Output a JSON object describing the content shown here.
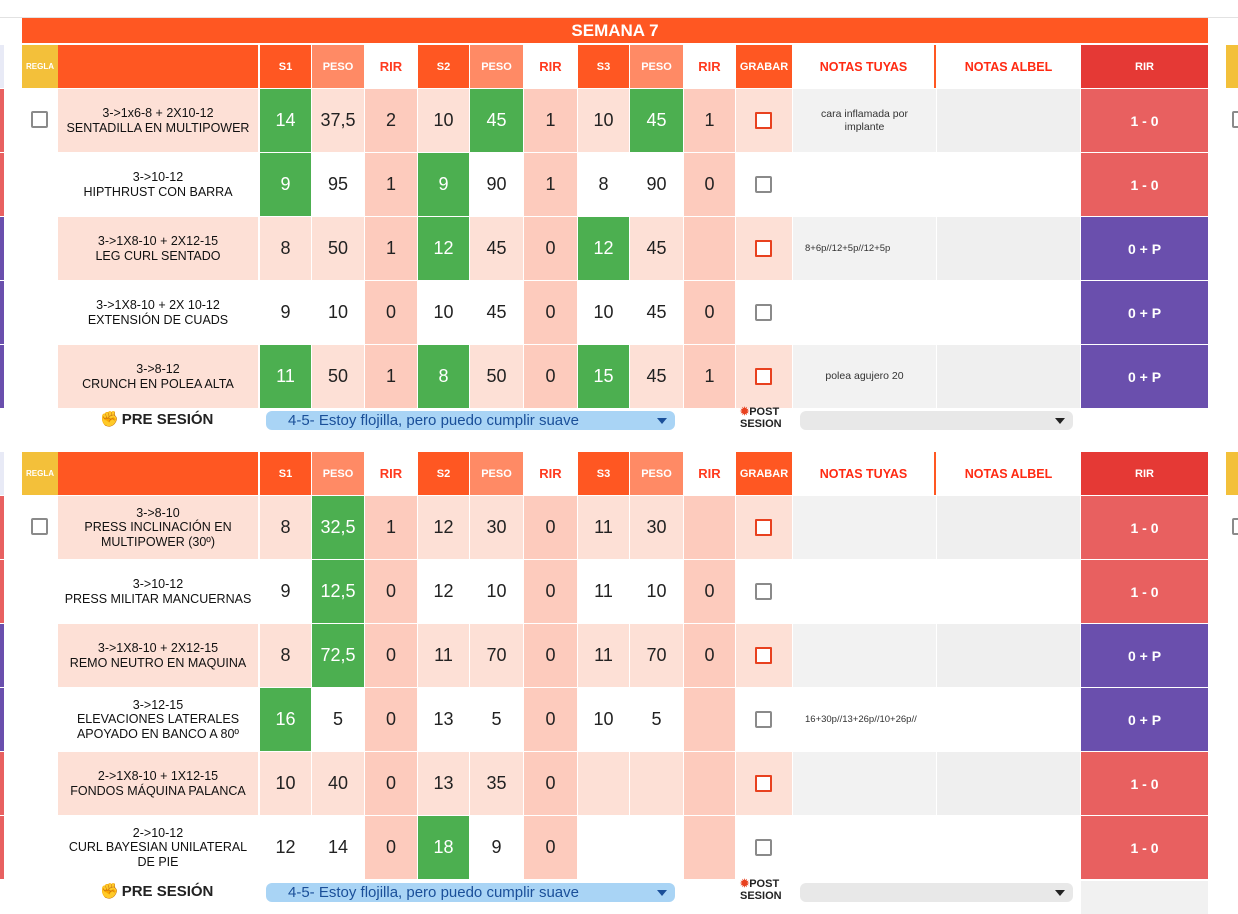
{
  "week_title": "SEMANA 7",
  "headers": {
    "regla": "REGLA",
    "s1": "S1",
    "peso1": "PESO",
    "rir1": "RIR",
    "s2": "S2",
    "peso2": "PESO",
    "rir2": "RIR",
    "s3": "S3",
    "peso3": "PESO",
    "rir3": "RIR",
    "grabar": "GRABAR",
    "notas_tuyas": "NOTAS TUYAS",
    "notas_albel": "NOTAS ALBEL",
    "rir": "RIR"
  },
  "colors": {
    "orange": "#ff5722",
    "salmon": "#ff8a65",
    "light_row": "#fde0d6",
    "rir_cell": "#fdcbbd",
    "green": "#4caf50",
    "red_rir": "#e86060",
    "purple_rir": "#6a4fad"
  },
  "sections": [
    {
      "rows": [
        {
          "exercise": "3->1x6-8 + 2X10-12\nSENTADILLA EN MULTIPOWER",
          "s1": "14",
          "peso1": "37,5",
          "rir1": "2",
          "s2": "10",
          "peso2": "45",
          "rir2": "1",
          "s3": "10",
          "peso3": "45",
          "rir3": "1",
          "notas": "cara inflamada por implante",
          "rir": "1 - 0"
        },
        {
          "exercise": "3->10-12\nHIPTHRUST CON BARRA",
          "s1": "9",
          "peso1": "95",
          "rir1": "1",
          "s2": "9",
          "peso2": "90",
          "rir2": "1",
          "s3": "8",
          "peso3": "90",
          "rir3": "0",
          "notas": "",
          "rir": "1 - 0"
        },
        {
          "exercise": "3->1X8-10 + 2X12-15\nLEG CURL SENTADO",
          "s1": "8",
          "peso1": "50",
          "rir1": "1",
          "s2": "12",
          "peso2": "45",
          "rir2": "0",
          "s3": "12",
          "peso3": "45",
          "rir3": "",
          "notas": "8+6p//12+5p//12+5p",
          "rir": "0 + P"
        },
        {
          "exercise": "3->1X8-10 + 2X 10-12\nEXTENSIÓN DE CUADS",
          "s1": "9",
          "peso1": "10",
          "rir1": "0",
          "s2": "10",
          "peso2": "45",
          "rir2": "0",
          "s3": "10",
          "peso3": "45",
          "rir3": "0",
          "notas": "",
          "rir": "0 + P"
        },
        {
          "exercise": "3->8-12\nCRUNCH EN POLEA ALTA",
          "s1": "11",
          "peso1": "50",
          "rir1": "1",
          "s2": "8",
          "peso2": "50",
          "rir2": "0",
          "s3": "15",
          "peso3": "45",
          "rir3": "1",
          "notas": "polea agujero 20",
          "rir": "0 + P"
        }
      ],
      "pre_label": "PRE SESIÓN",
      "pre_value": "4-5-  Estoy flojilla, pero puedo cumplir suave",
      "post_label_1": "POST",
      "post_label_2": "SESION"
    },
    {
      "rows": [
        {
          "exercise": "3->8-10\nPRESS INCLINACIÓN EN\nMULTIPOWER (30º)",
          "s1": "8",
          "peso1": "32,5",
          "rir1": "1",
          "s2": "12",
          "peso2": "30",
          "rir2": "0",
          "s3": "11",
          "peso3": "30",
          "rir3": "",
          "notas": "",
          "rir": "1 - 0"
        },
        {
          "exercise": "3->10-12\nPRESS MILITAR MANCUERNAS",
          "s1": "9",
          "peso1": "12,5",
          "rir1": "0",
          "s2": "12",
          "peso2": "10",
          "rir2": "0",
          "s3": "11",
          "peso3": "10",
          "rir3": "0",
          "notas": "",
          "rir": "1 - 0"
        },
        {
          "exercise": "3->1X8-10 + 2X12-15\nREMO NEUTRO EN MAQUINA",
          "s1": "8",
          "peso1": "72,5",
          "rir1": "0",
          "s2": "11",
          "peso2": "70",
          "rir2": "0",
          "s3": "11",
          "peso3": "70",
          "rir3": "0",
          "notas": "",
          "rir": "0 + P"
        },
        {
          "exercise": "3->12-15\nELEVACIONES LATERALES\nAPOYADO EN BANCO A 80º",
          "s1": "16",
          "peso1": "5",
          "rir1": "0",
          "s2": "13",
          "peso2": "5",
          "rir2": "0",
          "s3": "10",
          "peso3": "5",
          "rir3": "",
          "notas": "16+30p//13+26p//10+26p//",
          "rir": "0 + P"
        },
        {
          "exercise": "2->1X8-10 + 1X12-15\nFONDOS MÁQUINA PALANCA",
          "s1": "10",
          "peso1": "40",
          "rir1": "0",
          "s2": "13",
          "peso2": "35",
          "rir2": "0",
          "s3": "",
          "peso3": "",
          "rir3": "",
          "notas": "",
          "rir": "1 - 0"
        },
        {
          "exercise": "2->10-12\nCURL BAYESIAN UNILATERAL\nDE PIE",
          "s1": "12",
          "peso1": "14",
          "rir1": "0",
          "s2": "18",
          "peso2": "9",
          "rir2": "0",
          "s3": "",
          "peso3": "",
          "rir3": "",
          "notas": "",
          "rir": "1 - 0"
        }
      ],
      "pre_label": "PRE SESIÓN",
      "pre_value": "4-5-  Estoy flojilla, pero puedo cumplir suave",
      "post_label_1": "POST",
      "post_label_2": "SESION"
    }
  ]
}
